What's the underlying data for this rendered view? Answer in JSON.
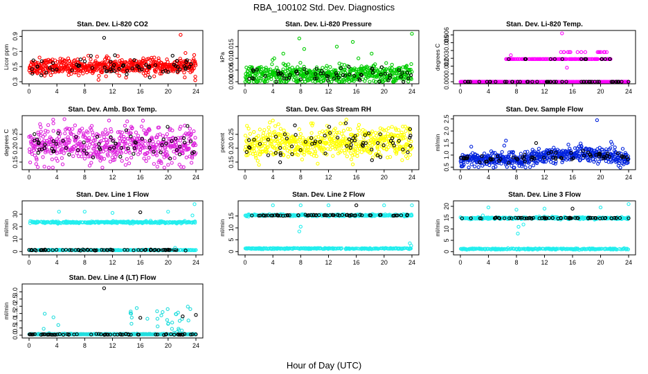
{
  "figure": {
    "title": "RBA_100102  Std. Dev. Diagnostics",
    "xlabel": "Hour of Day (UTC)"
  },
  "chart_data": [
    {
      "type": "scatter",
      "title": "Stan. Dev. Li-820 CO2",
      "ylabel": "Licor ppm",
      "xlim": [
        0,
        24
      ],
      "ylim": [
        0.3,
        0.95
      ],
      "xticks": [
        "0",
        "4",
        "8",
        "12",
        "16",
        "20",
        "24"
      ],
      "yticks": [
        0.3,
        0.5,
        0.7,
        0.9
      ],
      "ytick_labels": [
        "0.3",
        "0.5",
        "0.7",
        "0.9"
      ],
      "color": "#ff0000",
      "center": 0.5,
      "spread": 0.05,
      "sparse_center": 0.5,
      "sparse_spread": 0.06,
      "outliers": [
        [
          10.8,
          0.88
        ],
        [
          21.8,
          0.92
        ],
        [
          23.9,
          0.32
        ],
        [
          22.5,
          0.68
        ],
        [
          1.5,
          0.62
        ]
      ]
    },
    {
      "type": "scatter",
      "title": "Stan. Dev. Li-820 Pressure",
      "ylabel": "kPa",
      "xlim": [
        0,
        24
      ],
      "ylim": [
        0,
        0.021
      ],
      "xticks": [
        "0",
        "4",
        "8",
        "12",
        "16",
        "20",
        "24"
      ],
      "yticks": [
        0,
        0.005,
        0.01,
        0.015
      ],
      "ytick_labels": [
        "0.000",
        "0.005",
        "0.010",
        "0.015"
      ],
      "color": "#00cc00",
      "center": 0.003,
      "spread": 0.002,
      "sparse_center": 0.003,
      "sparse_spread": 0.0015,
      "outliers": [
        [
          4.2,
          0.01
        ],
        [
          5.5,
          0.012
        ],
        [
          7.8,
          0.0185
        ],
        [
          8.5,
          0.014
        ],
        [
          13.2,
          0.015
        ],
        [
          15.5,
          0.017
        ],
        [
          16.3,
          0.01
        ],
        [
          18.2,
          0.012
        ],
        [
          20.3,
          0.008
        ],
        [
          24,
          0.0205
        ]
      ]
    },
    {
      "type": "scatter",
      "title": "Stan. Dev. Li-820 Temp.",
      "ylabel": "degrees C",
      "xlim": [
        0,
        24
      ],
      "ylim": [
        0,
        0.0063
      ],
      "xticks": [
        "0",
        "4",
        "8",
        "12",
        "16",
        "20",
        "24"
      ],
      "yticks": [
        0,
        0.001,
        0.002,
        0.003,
        0.004,
        0.005,
        0.006
      ],
      "ytick_labels": [
        "0.000",
        "",
        "0.002",
        "0.003",
        "",
        "0.005",
        "0.006"
      ],
      "color": "#ff00ff",
      "pattern": "levels",
      "levels": [
        0,
        0.0029
      ],
      "level2_range": [
        6.5,
        21.5
      ],
      "extra_level": 0.0038,
      "extra_range": [
        14,
        21
      ],
      "outliers": [
        [
          14.5,
          0.0062
        ],
        [
          7.2,
          0.0034
        ],
        [
          15.2,
          0.0018
        ]
      ]
    },
    {
      "type": "scatter",
      "title": "Stan. Dev. Amb. Box Temp.",
      "ylabel": "degrees C",
      "xlim": [
        0,
        24
      ],
      "ylim": [
        0.13,
        0.31
      ],
      "xticks": [
        "0",
        "4",
        "8",
        "12",
        "16",
        "20",
        "24"
      ],
      "yticks": [
        0.15,
        0.2,
        0.25
      ],
      "ytick_labels": [
        "0.15",
        "0.20",
        "0.25"
      ],
      "color": "#dd22dd",
      "center": 0.21,
      "spread": 0.032,
      "sparse_center": 0.21,
      "sparse_spread": 0.028,
      "outliers": [
        [
          11.5,
          0.3
        ],
        [
          20,
          0.14
        ],
        [
          3.5,
          0.29
        ]
      ]
    },
    {
      "type": "scatter",
      "title": "Stan. Dev. Gas Stream RH",
      "ylabel": "percent",
      "xlim": [
        0,
        24
      ],
      "ylim": [
        0.13,
        0.31
      ],
      "xticks": [
        "0",
        "4",
        "8",
        "12",
        "16",
        "20",
        "24"
      ],
      "yticks": [
        0.15,
        0.2,
        0.25
      ],
      "ytick_labels": [
        "0.15",
        "0.20",
        "0.25"
      ],
      "color": "#ffff00",
      "center": 0.22,
      "spread": 0.028,
      "sparse_center": 0.22,
      "sparse_spread": 0.025,
      "outliers": [
        [
          4,
          0.3
        ],
        [
          9.5,
          0.29
        ],
        [
          2,
          0.14
        ]
      ]
    },
    {
      "type": "scatter",
      "title": "Stan. Dev. Sample Flow",
      "ylabel": "ml/min",
      "xlim": [
        0,
        24
      ],
      "ylim": [
        0.48,
        2.55
      ],
      "xticks": [
        "0",
        "4",
        "8",
        "12",
        "16",
        "20",
        "24"
      ],
      "yticks": [
        0.5,
        1.0,
        1.5,
        2.0,
        2.5
      ],
      "ytick_labels": [
        "0.5",
        "1.0",
        "1.5",
        "2.0",
        "2.5"
      ],
      "color": "#0022dd",
      "pattern": "wave",
      "center": 0.82,
      "spread": 0.16,
      "sparse_center": 0.85,
      "sparse_spread": 0.1,
      "outliers": [
        [
          19.5,
          2.45
        ],
        [
          10.8,
          1.5
        ],
        [
          6.5,
          1.6
        ],
        [
          21.5,
          1.55
        ]
      ]
    },
    {
      "type": "scatter",
      "title": "Stan. Dev. Line 1 Flow",
      "ylabel": "ml/min",
      "xlim": [
        0,
        24
      ],
      "ylim": [
        -1,
        39
      ],
      "xticks": [
        "0",
        "4",
        "8",
        "12",
        "16",
        "20",
        "24"
      ],
      "yticks": [
        0,
        10,
        20,
        30
      ],
      "ytick_labels": [
        "0",
        "10",
        "20",
        "30"
      ],
      "color": "#22eeee",
      "pattern": "bands",
      "bands": [
        23.5,
        1.2
      ],
      "band_spread": [
        0.8,
        0.25
      ],
      "sparse_band": 1.2,
      "outliers": [
        [
          4.3,
          32
        ],
        [
          8,
          32
        ],
        [
          12,
          31
        ],
        [
          16,
          31.5
        ],
        [
          20,
          32
        ],
        [
          23.8,
          38
        ],
        [
          21,
          3
        ],
        [
          23.5,
          29
        ]
      ]
    },
    {
      "type": "scatter",
      "title": "Stan. Dev. Line 2 Flow",
      "ylabel": "ml/min",
      "xlim": [
        0,
        24
      ],
      "ylim": [
        -0.5,
        20.5
      ],
      "xticks": [
        "0",
        "4",
        "8",
        "12",
        "16",
        "20",
        "24"
      ],
      "yticks": [
        0,
        5,
        10,
        15
      ],
      "ytick_labels": [
        "0",
        "5",
        "10",
        "15"
      ],
      "color": "#22eeee",
      "pattern": "bands",
      "bands": [
        15.3,
        1.3
      ],
      "band_spread": [
        0.4,
        0.25
      ],
      "sparse_band": 15.3,
      "outliers": [
        [
          4,
          19.5
        ],
        [
          8,
          19.5
        ],
        [
          12,
          19.5
        ],
        [
          16,
          19.5
        ],
        [
          20,
          19.5
        ],
        [
          24,
          19.5
        ],
        [
          7.8,
          8.5
        ],
        [
          8,
          10.5
        ],
        [
          23.7,
          3.5
        ],
        [
          23.9,
          2.5
        ]
      ]
    },
    {
      "type": "scatter",
      "title": "Stan. Dev. Line 3 Flow",
      "ylabel": "ml/min",
      "xlim": [
        0,
        24
      ],
      "ylim": [
        -0.5,
        21.5
      ],
      "xticks": [
        "0",
        "4",
        "8",
        "12",
        "16",
        "20",
        "24"
      ],
      "yticks": [
        0,
        5,
        10,
        15,
        20
      ],
      "ytick_labels": [
        "0",
        "5",
        "10",
        "15",
        "20"
      ],
      "color": "#22eeee",
      "pattern": "bands",
      "bands": [
        14.8,
        1.2
      ],
      "band_spread": [
        0.5,
        0.25
      ],
      "sparse_band": 14.8,
      "outliers": [
        [
          4,
          19.5
        ],
        [
          3.2,
          16
        ],
        [
          8,
          18.5
        ],
        [
          8.2,
          8
        ],
        [
          9,
          12
        ],
        [
          12,
          19
        ],
        [
          16,
          19
        ],
        [
          20,
          19.5
        ],
        [
          24,
          21
        ],
        [
          8.3,
          11
        ]
      ]
    },
    {
      "type": "scatter",
      "title": "Stan. Dev. Line 4 (LT) Flow",
      "ylabel": "ml/min",
      "xlim": [
        0,
        24
      ],
      "ylim": [
        -0.05,
        3.4
      ],
      "xticks": [
        "0",
        "4",
        "8",
        "12",
        "16",
        "20",
        "24"
      ],
      "yticks": [
        0,
        0.5,
        1.0,
        1.5,
        2.0,
        2.5,
        3.0
      ],
      "ytick_labels": [
        "0.0",
        "0.5",
        "1.0",
        "1.5",
        "2.0",
        "2.5",
        "3.0"
      ],
      "color": "#22dddd",
      "pattern": "baseline",
      "baseline": 0.05,
      "bursts": [
        [
          1.5,
          4.5
        ],
        [
          14.5,
          23.8
        ]
      ],
      "burst_max": 2.0,
      "sparse_band": 0.05,
      "outliers": [
        [
          10.8,
          3.25
        ],
        [
          16,
          1.2
        ],
        [
          22.1,
          1.3
        ],
        [
          24,
          1.4
        ],
        [
          2.1,
          0.45
        ],
        [
          4.2,
          0.7
        ]
      ]
    }
  ]
}
